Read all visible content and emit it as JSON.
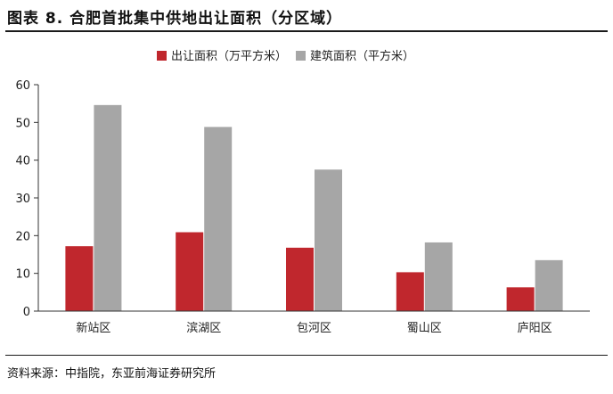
{
  "figure": {
    "title": "图表 8.   合肥首批集中供地出让面积（分区域）",
    "source": "资料来源：中指院，东亚前海证券研究所"
  },
  "chart_data": {
    "type": "bar",
    "categories": [
      "新站区",
      "滨湖区",
      "包河区",
      "蜀山区",
      "庐阳区"
    ],
    "series": [
      {
        "name": "出让面积（万平方米）",
        "color": "#c0272d",
        "values": [
          17.2,
          20.9,
          16.8,
          10.3,
          6.3
        ]
      },
      {
        "name": "建筑面积（平方米）",
        "color": "#a6a6a6",
        "values": [
          54.6,
          48.8,
          37.5,
          18.2,
          13.5
        ]
      }
    ],
    "ylim": [
      0,
      60
    ],
    "yticks": [
      "0",
      "10",
      "20",
      "30",
      "40",
      "50",
      "60"
    ],
    "grid": false,
    "legend_position": "top-center"
  }
}
